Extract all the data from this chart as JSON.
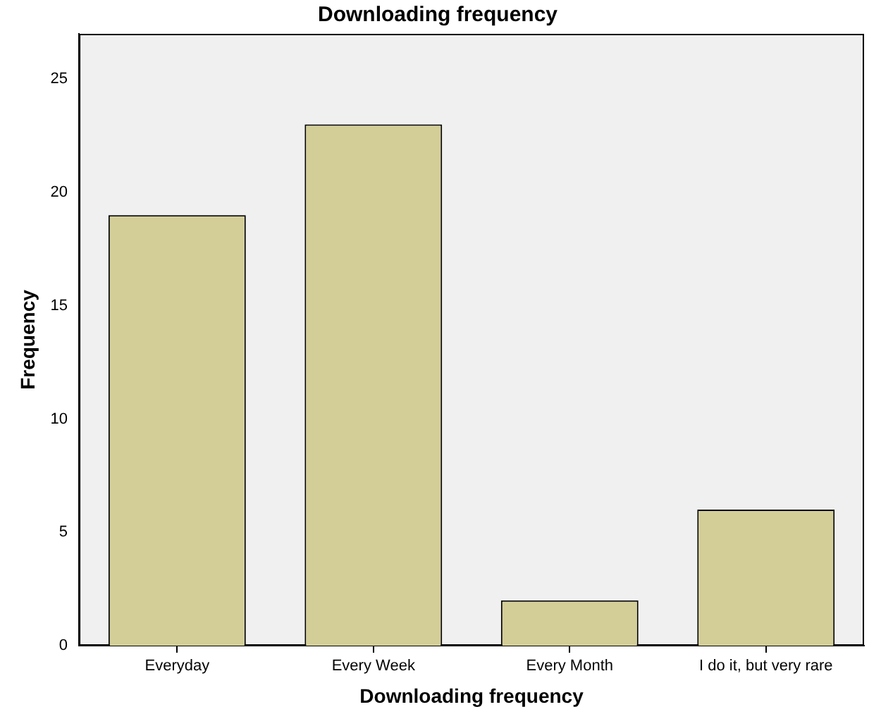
{
  "chart_data": {
    "type": "bar",
    "title": "Downloading frequency",
    "xlabel": "Downloading frequency",
    "ylabel": "Frequency",
    "categories": [
      "Everyday",
      "Every Week",
      "Every Month",
      "I do it, but very rare"
    ],
    "values": [
      19,
      23,
      2,
      6
    ],
    "color": "#d3ce98",
    "ylim": [
      0,
      27
    ],
    "yticks": [
      0,
      5,
      10,
      15,
      20,
      25
    ],
    "grid": false
  }
}
